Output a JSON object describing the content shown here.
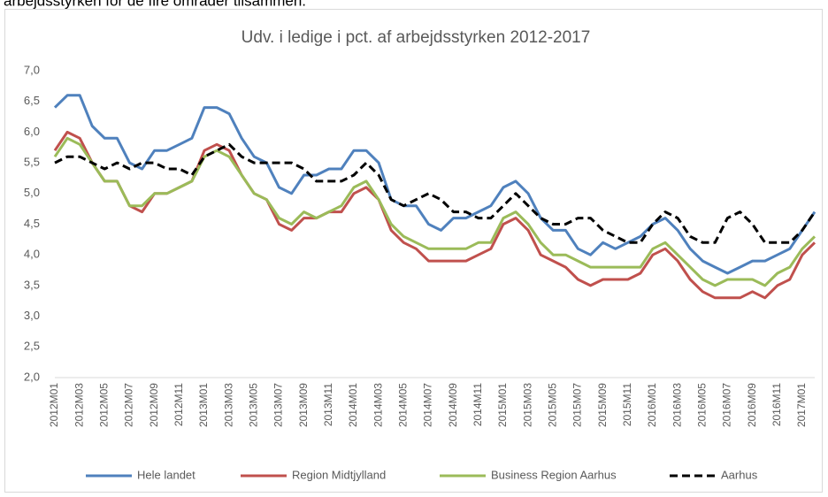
{
  "page_text": "arbejdsstyrken for de fire områder tilsammen.",
  "chart_data": {
    "type": "line",
    "title": "Udv. i ledige i pct. af arbejdsstyrken 2012-2017",
    "categories": [
      "2012M01",
      null,
      "2012M03",
      null,
      "2012M05",
      null,
      "2012M07",
      null,
      "2012M09",
      null,
      "2012M11",
      null,
      "2013M01",
      null,
      "2013M03",
      null,
      "2013M05",
      null,
      "2013M07",
      null,
      "2013M09",
      null,
      "2013M11",
      null,
      "2014M01",
      null,
      "2014M03",
      null,
      "2014M05",
      null,
      "2014M07",
      null,
      "2014M09",
      null,
      "2014M11",
      null,
      "2015M01",
      null,
      "2015M03",
      null,
      "2015M05",
      null,
      "2015M07",
      null,
      "2015M09",
      null,
      "2015M11",
      null,
      "2016M01",
      null,
      "2016M03",
      null,
      "2016M05",
      null,
      "2016M07",
      null,
      "2016M09",
      null,
      "2016M11",
      null,
      "2017M01",
      null
    ],
    "series": [
      {
        "name": "Hele landet",
        "color": "#4f81bd",
        "dash": false,
        "values": [
          6.4,
          6.6,
          6.6,
          6.1,
          5.9,
          5.9,
          5.5,
          5.4,
          5.7,
          5.7,
          5.8,
          5.9,
          6.4,
          6.4,
          6.3,
          5.9,
          5.6,
          5.5,
          5.1,
          5.0,
          5.3,
          5.3,
          5.4,
          5.4,
          5.7,
          5.7,
          5.5,
          4.9,
          4.8,
          4.8,
          4.5,
          4.4,
          4.6,
          4.6,
          4.7,
          4.8,
          5.1,
          5.2,
          5.0,
          4.6,
          4.4,
          4.4,
          4.1,
          4.0,
          4.2,
          4.1,
          4.2,
          4.3,
          4.5,
          4.6,
          4.4,
          4.1,
          3.9,
          3.8,
          3.7,
          3.8,
          3.9,
          3.9,
          4.0,
          4.1,
          4.4,
          4.7
        ]
      },
      {
        "name": "Region Midtjylland",
        "color": "#c0504d",
        "dash": false,
        "values": [
          5.7,
          6.0,
          5.9,
          5.5,
          5.2,
          5.2,
          4.8,
          4.7,
          5.0,
          5.0,
          5.1,
          5.2,
          5.7,
          5.8,
          5.7,
          5.3,
          5.0,
          4.9,
          4.5,
          4.4,
          4.6,
          4.6,
          4.7,
          4.7,
          5.0,
          5.1,
          4.9,
          4.4,
          4.2,
          4.1,
          3.9,
          3.9,
          3.9,
          3.9,
          4.0,
          4.1,
          4.5,
          4.6,
          4.4,
          4.0,
          3.9,
          3.8,
          3.6,
          3.5,
          3.6,
          3.6,
          3.6,
          3.7,
          4.0,
          4.1,
          3.9,
          3.6,
          3.4,
          3.3,
          3.3,
          3.3,
          3.4,
          3.3,
          3.5,
          3.6,
          4.0,
          4.2
        ]
      },
      {
        "name": "Business Region Aarhus",
        "color": "#9bbb59",
        "dash": false,
        "values": [
          5.6,
          5.9,
          5.8,
          5.5,
          5.2,
          5.2,
          4.8,
          4.8,
          5.0,
          5.0,
          5.1,
          5.2,
          5.6,
          5.7,
          5.6,
          5.3,
          5.0,
          4.9,
          4.6,
          4.5,
          4.7,
          4.6,
          4.7,
          4.8,
          5.1,
          5.2,
          4.9,
          4.5,
          4.3,
          4.2,
          4.1,
          4.1,
          4.1,
          4.1,
          4.2,
          4.2,
          4.6,
          4.7,
          4.5,
          4.2,
          4.0,
          4.0,
          3.9,
          3.8,
          3.8,
          3.8,
          3.8,
          3.8,
          4.1,
          4.2,
          4.0,
          3.8,
          3.6,
          3.5,
          3.6,
          3.6,
          3.6,
          3.5,
          3.7,
          3.8,
          4.1,
          4.3
        ]
      },
      {
        "name": "Aarhus",
        "color": "#000000",
        "dash": true,
        "values": [
          5.5,
          5.6,
          5.6,
          5.5,
          5.4,
          5.5,
          5.4,
          5.5,
          5.5,
          5.4,
          5.4,
          5.3,
          5.6,
          5.7,
          5.8,
          5.6,
          5.5,
          5.5,
          5.5,
          5.5,
          5.4,
          5.2,
          5.2,
          5.2,
          5.3,
          5.5,
          5.3,
          4.9,
          4.8,
          4.9,
          5.0,
          4.9,
          4.7,
          4.7,
          4.6,
          4.6,
          4.8,
          5.0,
          4.8,
          4.6,
          4.5,
          4.5,
          4.6,
          4.6,
          4.4,
          4.3,
          4.2,
          4.2,
          4.5,
          4.7,
          4.6,
          4.3,
          4.2,
          4.2,
          4.6,
          4.7,
          4.5,
          4.2,
          4.2,
          4.2,
          4.4,
          4.7
        ]
      }
    ],
    "ylim": [
      2,
      7
    ],
    "yticks": [
      {
        "value": 2,
        "label": "2,0"
      },
      {
        "value": 2.5,
        "label": "2,5"
      },
      {
        "value": 3,
        "label": "3,0"
      },
      {
        "value": 3.5,
        "label": "3,5"
      },
      {
        "value": 4,
        "label": "4,0"
      },
      {
        "value": 4.5,
        "label": "4,5"
      },
      {
        "value": 5,
        "label": "5,0"
      },
      {
        "value": 5.5,
        "label": "5,5"
      },
      {
        "value": 6,
        "label": "6,0"
      },
      {
        "value": 6.5,
        "label": "6,5"
      },
      {
        "value": 7,
        "label": "7,0"
      }
    ],
    "grid": false,
    "legend": "bottom"
  }
}
